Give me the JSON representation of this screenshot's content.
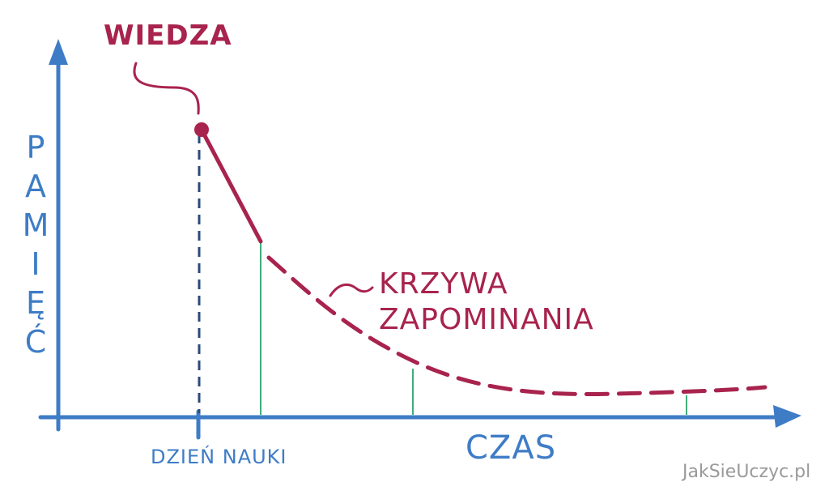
{
  "labels": {
    "knowledge": "WIEDZA",
    "memory": "PAMIĘĆ",
    "study_day": "DZIEŃ NAUKI",
    "time": "CZAS",
    "curve": [
      "KRZYWA",
      "ZAPOMINANIA"
    ]
  },
  "watermark": "JakSieUczyc.pl"
}
